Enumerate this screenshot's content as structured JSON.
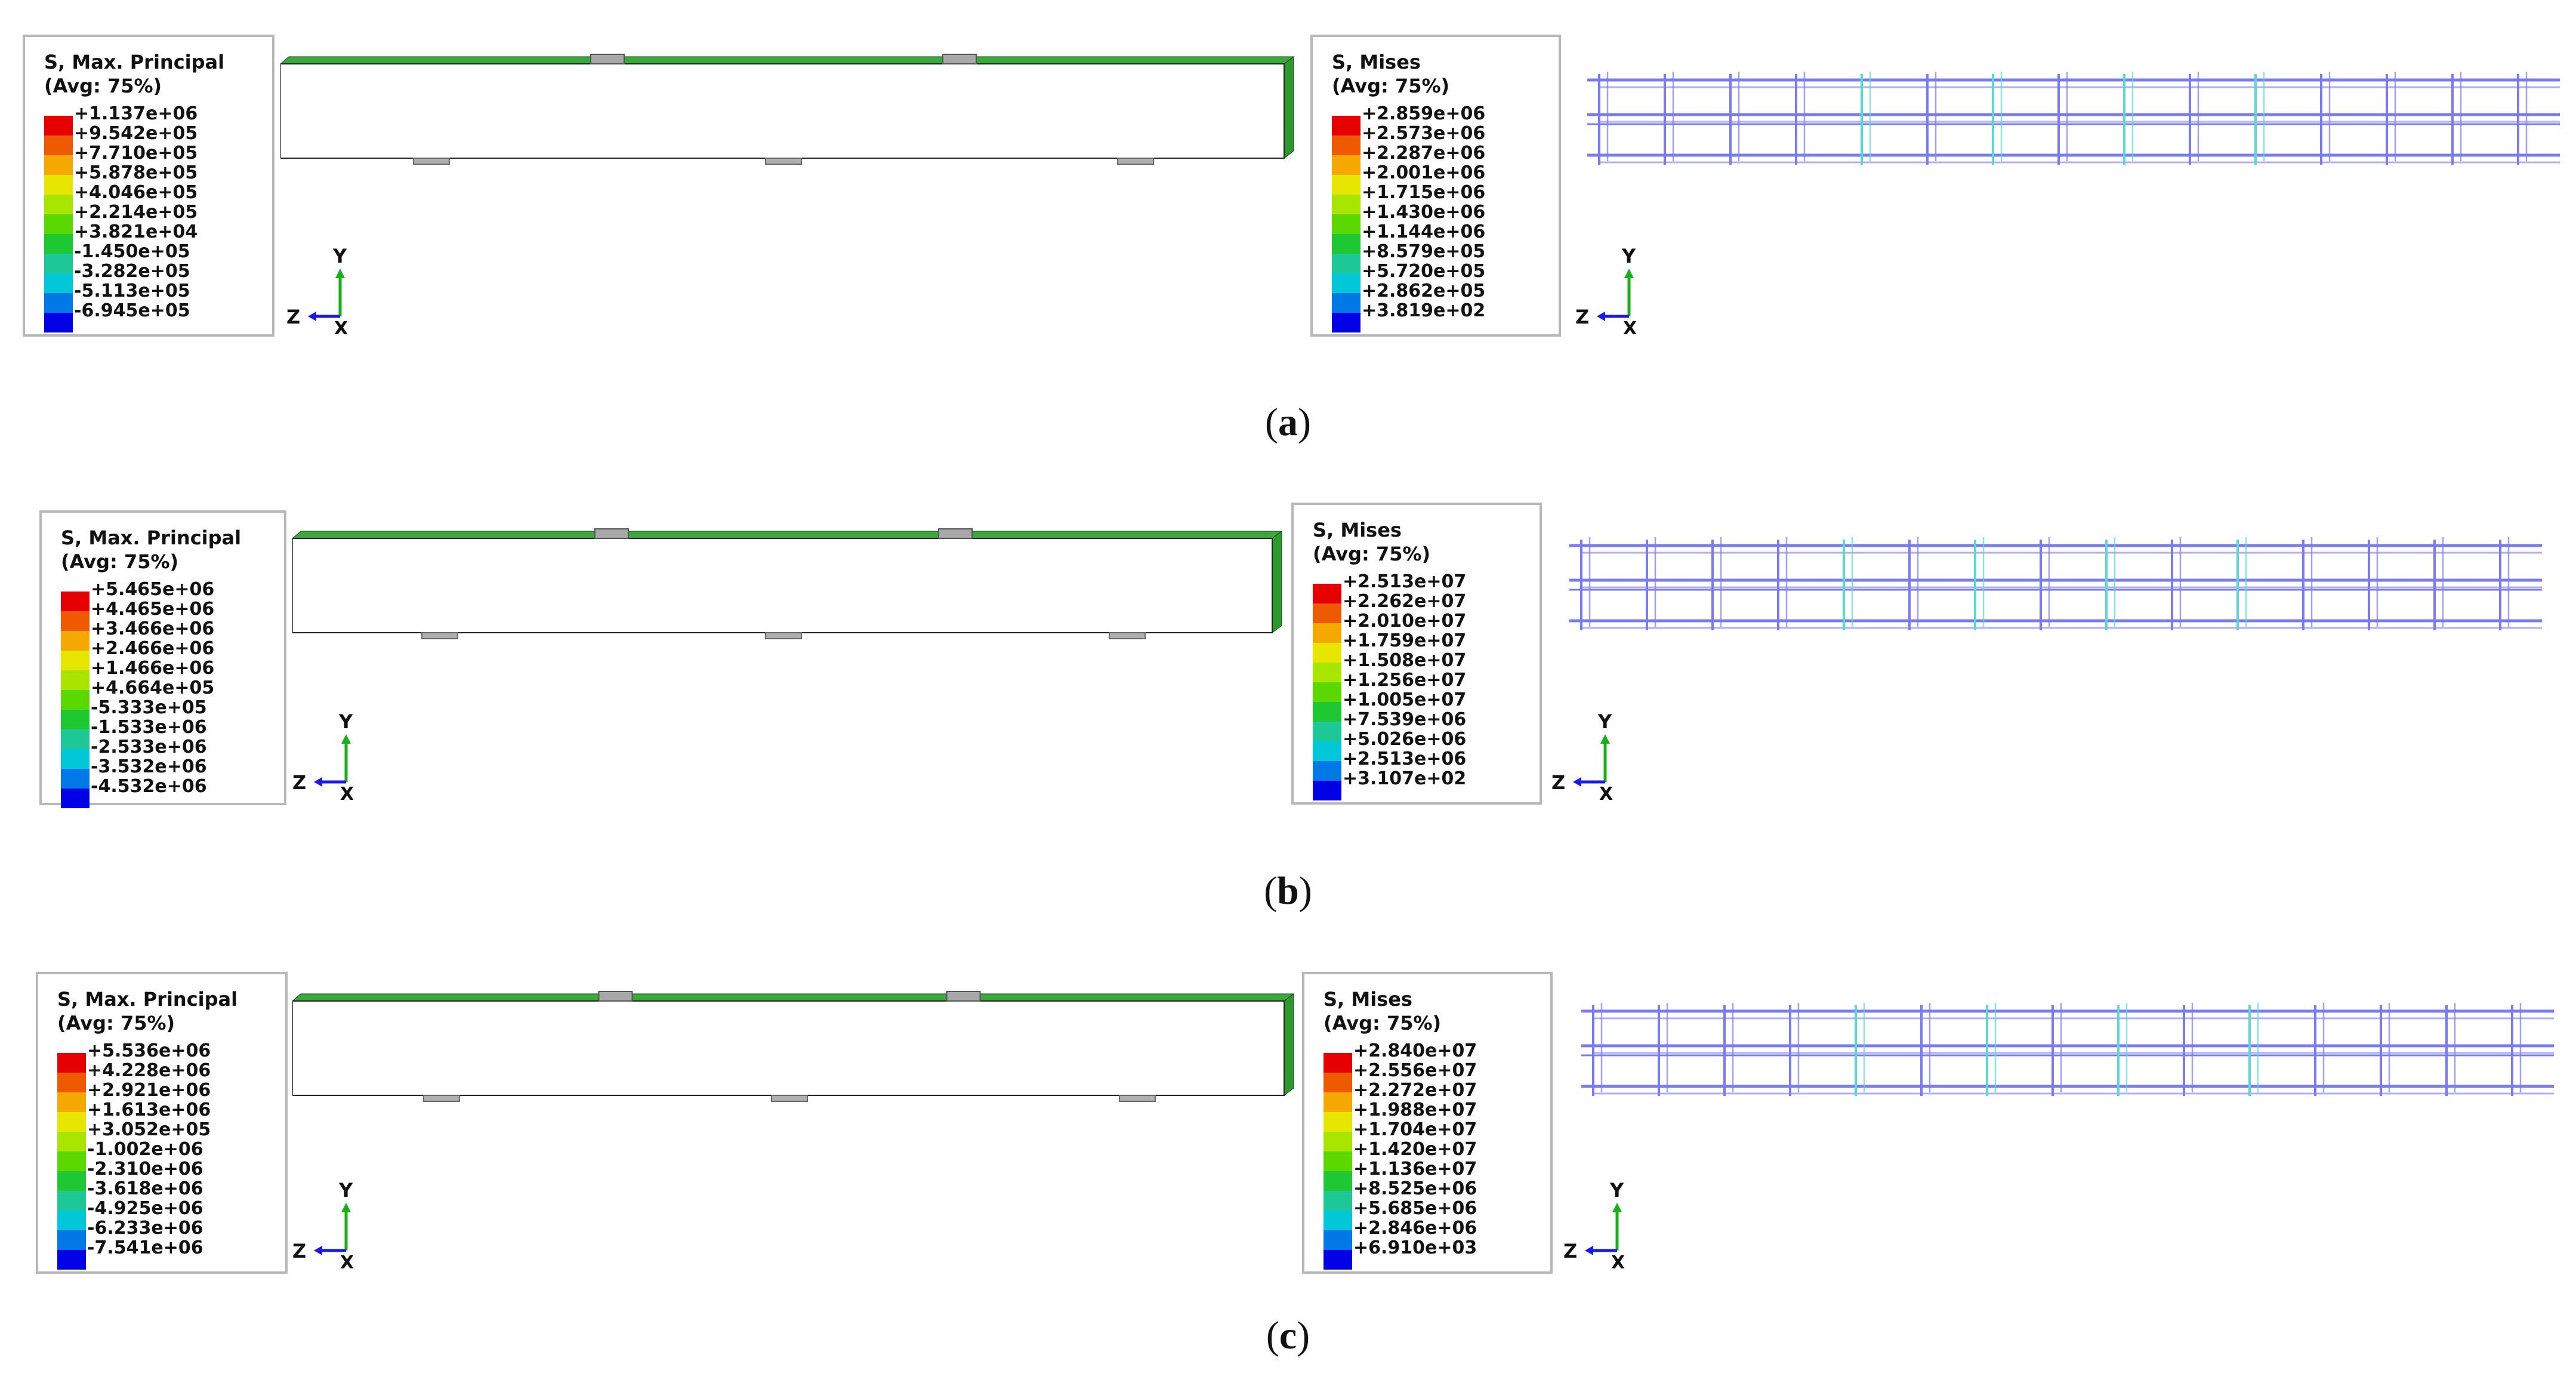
{
  "panels": [
    {
      "caption_letter": "a",
      "principal": {
        "title": "S, Max. Principal",
        "subtitle": "(Avg: 75%)",
        "labels": [
          "+1.137e+06",
          "+9.542e+05",
          "+7.710e+05",
          "+5.878e+05",
          "+4.046e+05",
          "+2.214e+05",
          "+3.821e+04",
          "-1.450e+05",
          "-3.282e+05",
          "-5.113e+05",
          "-6.945e+05"
        ]
      },
      "mises": {
        "title": "S, Mises",
        "subtitle": "(Avg: 75%)",
        "labels": [
          "+2.859e+06",
          "+2.573e+06",
          "+2.287e+06",
          "+2.001e+06",
          "+1.715e+06",
          "+1.430e+06",
          "+1.144e+06",
          "+8.579e+05",
          "+5.720e+05",
          "+2.862e+05",
          "+3.819e+02"
        ]
      },
      "contour_state": "low",
      "triad": {
        "y": "Y",
        "z": "Z",
        "x": "X"
      }
    },
    {
      "caption_letter": "b",
      "principal": {
        "title": "S, Max. Principal",
        "subtitle": "(Avg: 75%)",
        "labels": [
          "+5.465e+06",
          "+4.465e+06",
          "+3.466e+06",
          "+2.466e+06",
          "+1.466e+06",
          "+4.664e+05",
          "-5.333e+05",
          "-1.533e+06",
          "-2.533e+06",
          "-3.532e+06",
          "-4.532e+06"
        ]
      },
      "mises": {
        "title": "S, Mises",
        "subtitle": "(Avg: 75%)",
        "labels": [
          "+2.513e+07",
          "+2.262e+07",
          "+2.010e+07",
          "+1.759e+07",
          "+1.508e+07",
          "+1.256e+07",
          "+1.005e+07",
          "+7.539e+06",
          "+5.026e+06",
          "+2.513e+06",
          "+3.107e+02"
        ]
      },
      "contour_state": "medium",
      "triad": {
        "y": "Y",
        "z": "Z",
        "x": "X"
      }
    },
    {
      "caption_letter": "c",
      "principal": {
        "title": "S, Max. Principal",
        "subtitle": "(Avg: 75%)",
        "labels": [
          "+5.536e+06",
          "+4.228e+06",
          "+2.921e+06",
          "+1.613e+06",
          "+3.052e+05",
          "-1.002e+06",
          "-2.310e+06",
          "-3.618e+06",
          "-4.925e+06",
          "-6.233e+06",
          "-7.541e+06"
        ]
      },
      "mises": {
        "title": "S, Mises",
        "subtitle": "(Avg: 75%)",
        "labels": [
          "+2.840e+07",
          "+2.556e+07",
          "+2.272e+07",
          "+1.988e+07",
          "+1.704e+07",
          "+1.420e+07",
          "+1.136e+07",
          "+8.525e+06",
          "+5.685e+06",
          "+2.846e+06",
          "+6.910e+03"
        ]
      },
      "contour_state": "high",
      "triad": {
        "y": "Y",
        "z": "Z",
        "x": "X"
      }
    }
  ],
  "colors": {
    "scale": [
      "#e60000",
      "#ef5a00",
      "#f5a800",
      "#e6e600",
      "#a8e600",
      "#5ad800",
      "#1ec832",
      "#1ec896",
      "#00c8d8",
      "#0078e6",
      "#0000e6"
    ],
    "rebar": "#7b7bf0",
    "mesh_line": "#1a3a1a"
  }
}
